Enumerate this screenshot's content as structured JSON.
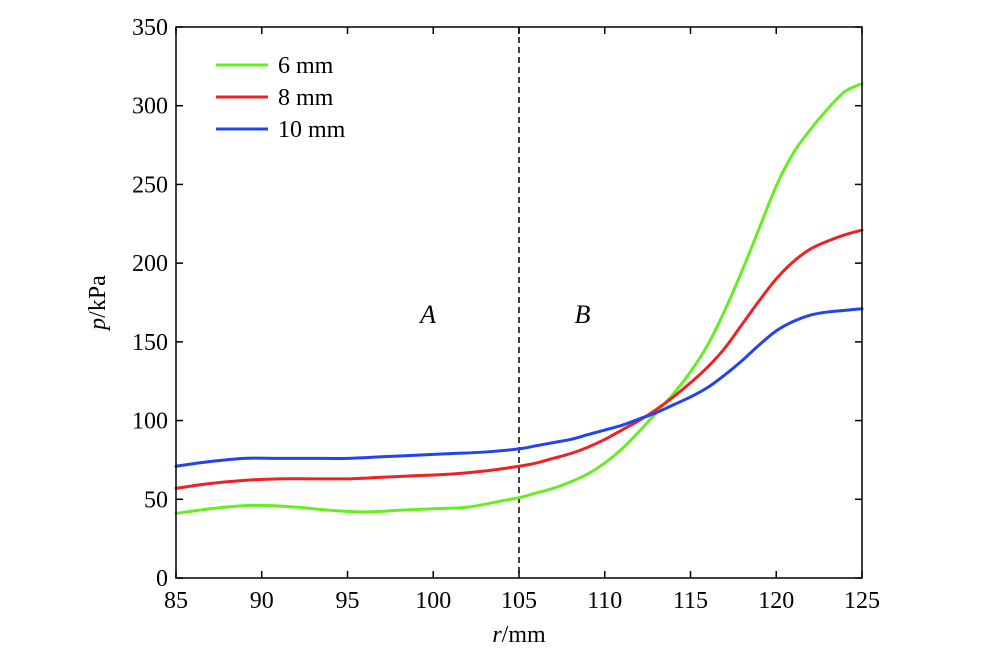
{
  "chart_data": {
    "type": "line",
    "xlabel": {
      "var": "r",
      "unit": "/mm"
    },
    "ylabel": {
      "var": "p",
      "unit": "/kPa"
    },
    "xlim": [
      85,
      125
    ],
    "ylim": [
      0,
      350
    ],
    "xticks": [
      "85",
      "90",
      "95",
      "100",
      "105",
      "110",
      "115",
      "120",
      "125"
    ],
    "yticks": [
      "0",
      "50",
      "100",
      "150",
      "200",
      "250",
      "300",
      "350"
    ],
    "grid": false,
    "legend_position": "top-left",
    "divider": {
      "x": 105,
      "style": "dashed"
    },
    "regions": [
      {
        "label": "A",
        "x": 99.7,
        "y": 162
      },
      {
        "label": "B",
        "x": 108.7,
        "y": 162
      }
    ],
    "series": [
      {
        "name": "6 mm",
        "color": "#66ee22",
        "points": [
          [
            85,
            41
          ],
          [
            87,
            44
          ],
          [
            89,
            46
          ],
          [
            90.5,
            46
          ],
          [
            92,
            45
          ],
          [
            94,
            43
          ],
          [
            96,
            42
          ],
          [
            98,
            43
          ],
          [
            100,
            44
          ],
          [
            102,
            45
          ],
          [
            104,
            49
          ],
          [
            105,
            51
          ],
          [
            106,
            54
          ],
          [
            107,
            57
          ],
          [
            108,
            61
          ],
          [
            109,
            66
          ],
          [
            110,
            73
          ],
          [
            111,
            82
          ],
          [
            112,
            93
          ],
          [
            113,
            105
          ],
          [
            114,
            117
          ],
          [
            115,
            131
          ],
          [
            116,
            148
          ],
          [
            117,
            170
          ],
          [
            118,
            195
          ],
          [
            119,
            222
          ],
          [
            120,
            249
          ],
          [
            121,
            270
          ],
          [
            122,
            285
          ],
          [
            123,
            298
          ],
          [
            124,
            309
          ],
          [
            125,
            314
          ]
        ]
      },
      {
        "name": "8 mm",
        "color": "#ee2222",
        "points": [
          [
            85,
            57
          ],
          [
            87,
            60
          ],
          [
            89,
            62
          ],
          [
            91,
            63
          ],
          [
            93,
            63
          ],
          [
            95,
            63
          ],
          [
            97,
            64
          ],
          [
            99,
            65
          ],
          [
            101,
            66
          ],
          [
            103,
            68
          ],
          [
            105,
            71
          ],
          [
            106,
            73
          ],
          [
            107,
            76
          ],
          [
            108,
            79
          ],
          [
            109,
            83
          ],
          [
            110,
            88
          ],
          [
            111,
            94
          ],
          [
            112,
            100
          ],
          [
            113,
            107
          ],
          [
            114,
            115
          ],
          [
            115,
            124
          ],
          [
            116,
            134
          ],
          [
            117,
            146
          ],
          [
            118,
            161
          ],
          [
            119,
            176
          ],
          [
            120,
            190
          ],
          [
            121,
            201
          ],
          [
            122,
            209
          ],
          [
            123,
            214
          ],
          [
            124,
            218
          ],
          [
            125,
            221
          ]
        ]
      },
      {
        "name": "10 mm",
        "color": "#2244ee",
        "points": [
          [
            85,
            71
          ],
          [
            87,
            74
          ],
          [
            89,
            76
          ],
          [
            91,
            76
          ],
          [
            93,
            76
          ],
          [
            95,
            76
          ],
          [
            97,
            77
          ],
          [
            99,
            78
          ],
          [
            101,
            79
          ],
          [
            103,
            80
          ],
          [
            105,
            82
          ],
          [
            106,
            84
          ],
          [
            107,
            86
          ],
          [
            108,
            88
          ],
          [
            109,
            91
          ],
          [
            110,
            94
          ],
          [
            111,
            97
          ],
          [
            112,
            101
          ],
          [
            113,
            105
          ],
          [
            114,
            110
          ],
          [
            115,
            115
          ],
          [
            116,
            121
          ],
          [
            117,
            129
          ],
          [
            118,
            138
          ],
          [
            119,
            148
          ],
          [
            120,
            157
          ],
          [
            121,
            163
          ],
          [
            122,
            167
          ],
          [
            123,
            169
          ],
          [
            124,
            170
          ],
          [
            125,
            171
          ]
        ]
      }
    ]
  }
}
